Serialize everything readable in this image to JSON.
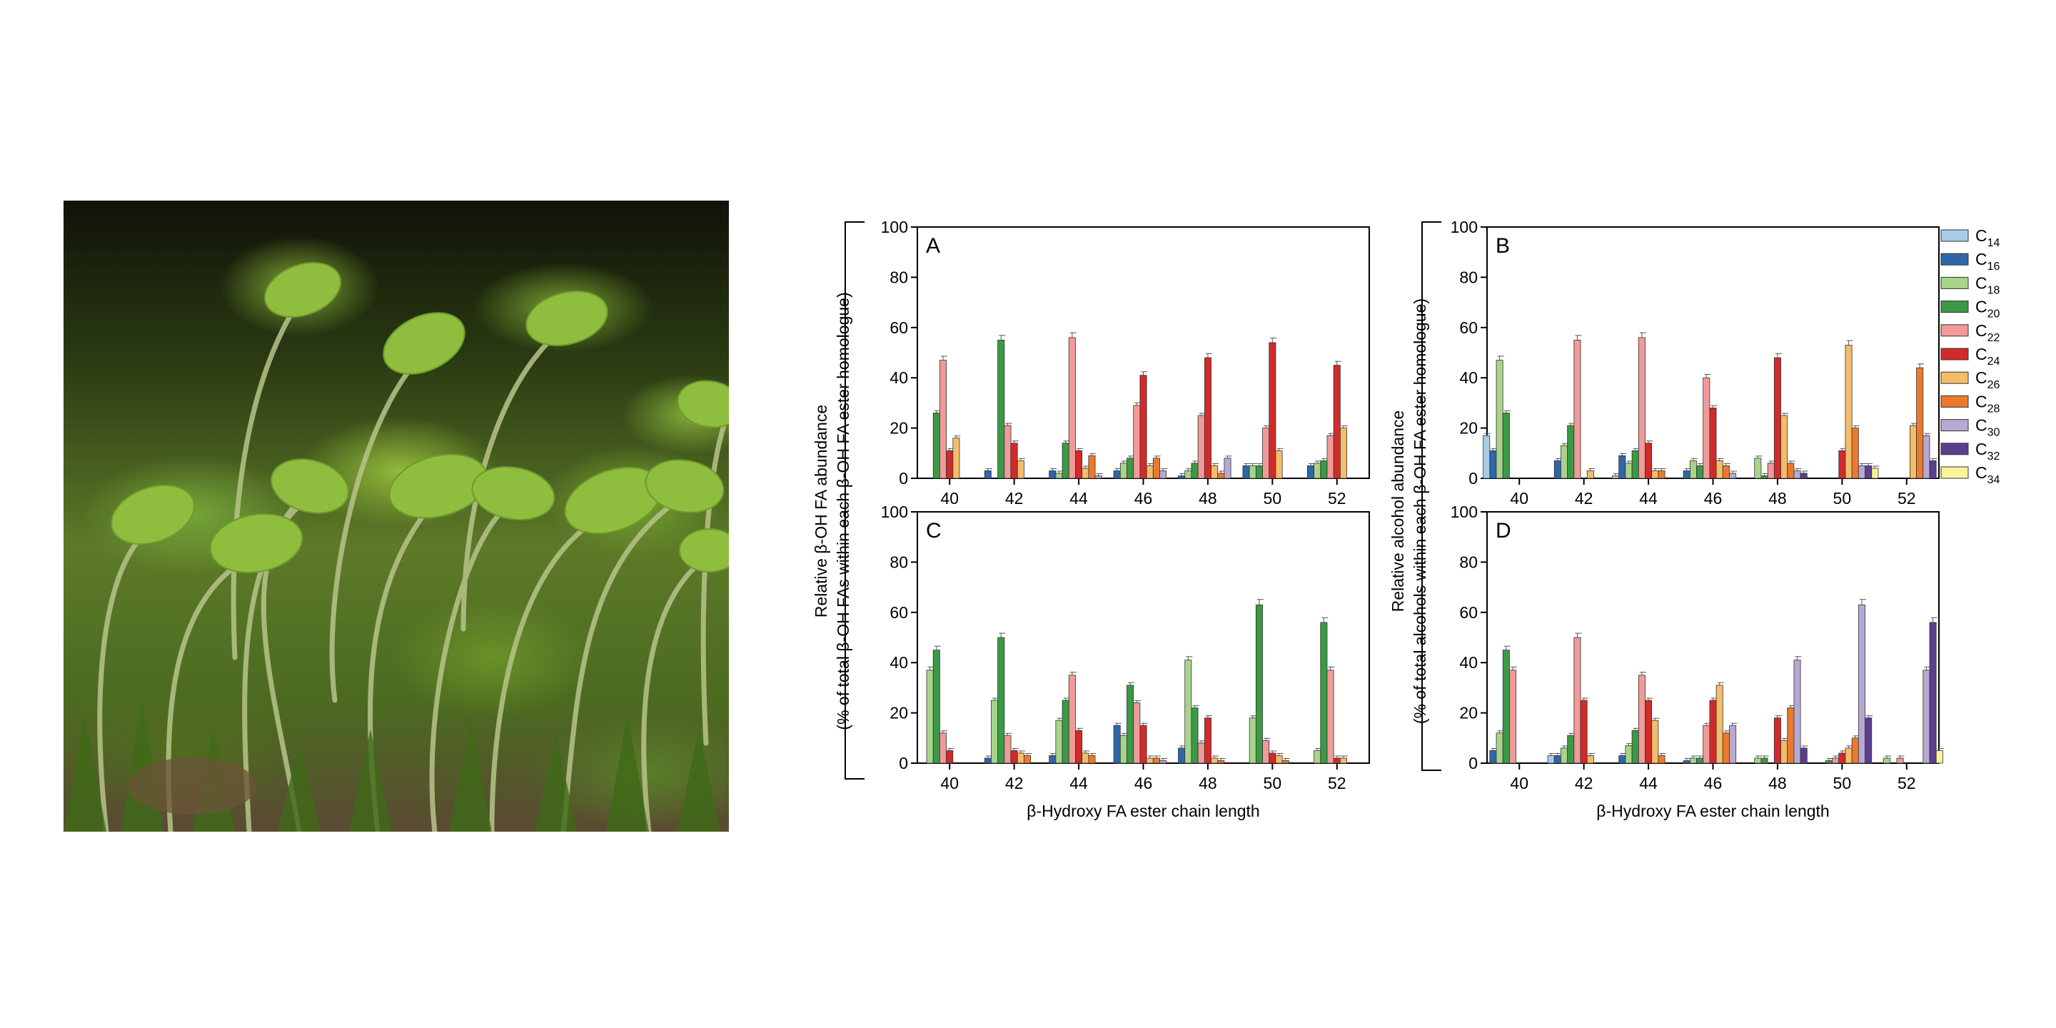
{
  "photo": {
    "subject": "moss sporophytes with green capsules on curved setae"
  },
  "chart_data": [
    {
      "type": "bar",
      "panel_label": "A",
      "categories": [
        "40",
        "42",
        "44",
        "46",
        "48",
        "50",
        "52"
      ],
      "ylim": [
        0,
        100
      ],
      "yticks": [
        "0",
        "20",
        "40",
        "60",
        "80",
        "100"
      ],
      "xlabel": "",
      "series": [
        {
          "name": "C14",
          "values": [
            0,
            0,
            0,
            0,
            0,
            0,
            0
          ]
        },
        {
          "name": "C16",
          "values": [
            0,
            3,
            3,
            3,
            1,
            5,
            5
          ]
        },
        {
          "name": "C18",
          "values": [
            0,
            0,
            2,
            6,
            3,
            5,
            6
          ]
        },
        {
          "name": "C20",
          "values": [
            26,
            55,
            14,
            8,
            6,
            5,
            7
          ]
        },
        {
          "name": "C22",
          "values": [
            47,
            21,
            56,
            29,
            25,
            20,
            17
          ]
        },
        {
          "name": "C24",
          "values": [
            11,
            14,
            11,
            41,
            48,
            54,
            45
          ]
        },
        {
          "name": "C26",
          "values": [
            16,
            7,
            4,
            5,
            5,
            11,
            20
          ]
        },
        {
          "name": "C28",
          "values": [
            0,
            0,
            9,
            8,
            2,
            0,
            0
          ]
        },
        {
          "name": "C30",
          "values": [
            0,
            0,
            1,
            3,
            8,
            0,
            0
          ]
        },
        {
          "name": "C32",
          "values": [
            0,
            0,
            0,
            0,
            0,
            0,
            0
          ]
        },
        {
          "name": "C34",
          "values": [
            0,
            0,
            0,
            0,
            0,
            0,
            0
          ]
        }
      ]
    },
    {
      "type": "bar",
      "panel_label": "B",
      "categories": [
        "40",
        "42",
        "44",
        "46",
        "48",
        "50",
        "52"
      ],
      "ylim": [
        0,
        100
      ],
      "yticks": [
        "0",
        "20",
        "40",
        "60",
        "80",
        "100"
      ],
      "xlabel": "",
      "series": [
        {
          "name": "C14",
          "values": [
            17,
            0,
            1,
            0,
            0,
            0,
            0
          ]
        },
        {
          "name": "C16",
          "values": [
            11,
            7,
            9,
            3,
            0,
            0,
            0
          ]
        },
        {
          "name": "C18",
          "values": [
            47,
            13,
            6,
            7,
            8,
            0,
            0
          ]
        },
        {
          "name": "C20",
          "values": [
            26,
            21,
            11,
            5,
            1,
            0,
            0
          ]
        },
        {
          "name": "C22",
          "values": [
            0,
            55,
            56,
            40,
            6,
            0,
            0
          ]
        },
        {
          "name": "C24",
          "values": [
            0,
            0,
            14,
            28,
            48,
            11,
            0
          ]
        },
        {
          "name": "C26",
          "values": [
            0,
            3,
            3,
            7,
            25,
            53,
            21
          ]
        },
        {
          "name": "C28",
          "values": [
            0,
            0,
            3,
            5,
            6,
            20,
            44
          ]
        },
        {
          "name": "C30",
          "values": [
            0,
            0,
            0,
            2,
            3,
            5,
            17
          ]
        },
        {
          "name": "C32",
          "values": [
            0,
            0,
            0,
            0,
            2,
            5,
            7
          ]
        },
        {
          "name": "C34",
          "values": [
            0,
            0,
            0,
            0,
            0,
            4,
            0
          ]
        }
      ]
    },
    {
      "type": "bar",
      "panel_label": "C",
      "categories": [
        "40",
        "42",
        "44",
        "46",
        "48",
        "50",
        "52"
      ],
      "ylim": [
        0,
        100
      ],
      "yticks": [
        "0",
        "20",
        "40",
        "60",
        "80",
        "100"
      ],
      "xlabel": "β-Hydroxy FA ester chain length",
      "series": [
        {
          "name": "C14",
          "values": [
            0,
            0,
            0,
            0,
            0,
            0,
            0
          ]
        },
        {
          "name": "C16",
          "values": [
            0,
            2,
            3,
            15,
            6,
            0,
            0
          ]
        },
        {
          "name": "C18",
          "values": [
            37,
            25,
            17,
            11,
            41,
            18,
            5
          ]
        },
        {
          "name": "C20",
          "values": [
            45,
            50,
            25,
            31,
            22,
            63,
            56
          ]
        },
        {
          "name": "C22",
          "values": [
            12,
            11,
            35,
            24,
            8,
            9,
            37
          ]
        },
        {
          "name": "C24",
          "values": [
            5,
            5,
            13,
            15,
            18,
            4,
            2
          ]
        },
        {
          "name": "C26",
          "values": [
            0,
            4,
            4,
            2,
            2,
            3,
            2
          ]
        },
        {
          "name": "C28",
          "values": [
            0,
            3,
            3,
            2,
            1,
            1,
            0
          ]
        },
        {
          "name": "C30",
          "values": [
            0,
            0,
            0,
            1,
            0,
            0,
            0
          ]
        },
        {
          "name": "C32",
          "values": [
            0,
            0,
            0,
            0,
            0,
            0,
            0
          ]
        },
        {
          "name": "C34",
          "values": [
            0,
            0,
            0,
            0,
            0,
            0,
            0
          ]
        }
      ]
    },
    {
      "type": "bar",
      "panel_label": "D",
      "categories": [
        "40",
        "42",
        "44",
        "46",
        "48",
        "50",
        "52"
      ],
      "ylim": [
        0,
        100
      ],
      "yticks": [
        "0",
        "20",
        "40",
        "60",
        "80",
        "100"
      ],
      "xlabel": "β-Hydroxy FA ester chain length",
      "series": [
        {
          "name": "C14",
          "values": [
            0,
            3,
            0,
            0,
            0,
            0,
            0
          ]
        },
        {
          "name": "C16",
          "values": [
            5,
            3,
            3,
            1,
            0,
            0,
            0
          ]
        },
        {
          "name": "C18",
          "values": [
            12,
            6,
            7,
            2,
            2,
            0,
            2
          ]
        },
        {
          "name": "C20",
          "values": [
            45,
            11,
            13,
            2,
            2,
            1,
            0
          ]
        },
        {
          "name": "C22",
          "values": [
            37,
            50,
            35,
            15,
            0,
            2,
            2
          ]
        },
        {
          "name": "C24",
          "values": [
            0,
            25,
            25,
            25,
            18,
            4,
            0
          ]
        },
        {
          "name": "C26",
          "values": [
            0,
            3,
            17,
            31,
            9,
            6,
            0
          ]
        },
        {
          "name": "C28",
          "values": [
            0,
            0,
            3,
            12,
            22,
            10,
            0
          ]
        },
        {
          "name": "C30",
          "values": [
            0,
            0,
            0,
            15,
            41,
            63,
            37
          ]
        },
        {
          "name": "C32",
          "values": [
            0,
            0,
            0,
            0,
            6,
            18,
            56
          ]
        },
        {
          "name": "C34",
          "values": [
            0,
            0,
            0,
            0,
            0,
            0,
            5
          ]
        }
      ]
    }
  ],
  "ylabels": {
    "left": [
      "Relative β-OH FA abundance",
      "(% of total β-OH FAs within each β-OH FA ester homologue)"
    ],
    "right": [
      "Relative alcohol abundance",
      "(% of total alcohols within each β-OH FA ester homologue)"
    ]
  },
  "legend": {
    "position": "right",
    "entries": [
      {
        "base": "C",
        "sub": "14",
        "color": "#a9cbe6"
      },
      {
        "base": "C",
        "sub": "16",
        "color": "#2f66a8"
      },
      {
        "base": "C",
        "sub": "18",
        "color": "#a8d48a"
      },
      {
        "base": "C",
        "sub": "20",
        "color": "#3a9a45"
      },
      {
        "base": "C",
        "sub": "22",
        "color": "#f09a99"
      },
      {
        "base": "C",
        "sub": "24",
        "color": "#d22a2a"
      },
      {
        "base": "C",
        "sub": "26",
        "color": "#f5bd6a"
      },
      {
        "base": "C",
        "sub": "28",
        "color": "#ec7a2c"
      },
      {
        "base": "C",
        "sub": "30",
        "color": "#b8a9d3"
      },
      {
        "base": "C",
        "sub": "32",
        "color": "#5a3f8e"
      },
      {
        "base": "C",
        "sub": "34",
        "color": "#fbf29a"
      }
    ]
  }
}
